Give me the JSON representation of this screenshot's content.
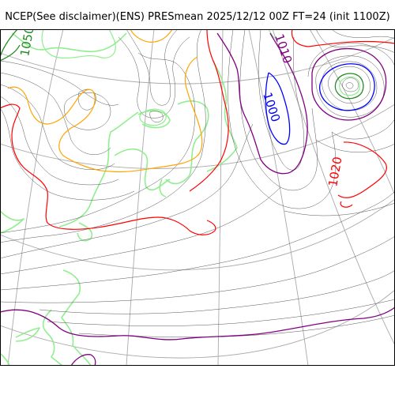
{
  "title": "NCEP(See disclaimer)(ENS) PRESmean 2025/12/12 00Z FT=24 (init 1100Z)",
  "isobar_labels": [
    {
      "text": "1050",
      "color": "#228b22"
    },
    {
      "text": "1010",
      "color": "#800080"
    },
    {
      "text": "1000",
      "color": "#0000ff"
    },
    {
      "text": "1020",
      "color": "#ff0000"
    }
  ],
  "colors": {
    "isobar_thin": "#555555",
    "graticule": "#aaaaaa",
    "coastline": "#90ee90",
    "c1050": "#228b22",
    "c1040": "#90ee90",
    "c1030": "#ffa500",
    "c1020": "#ff0000",
    "c1010": "#800080",
    "c1000": "#0000ff"
  }
}
